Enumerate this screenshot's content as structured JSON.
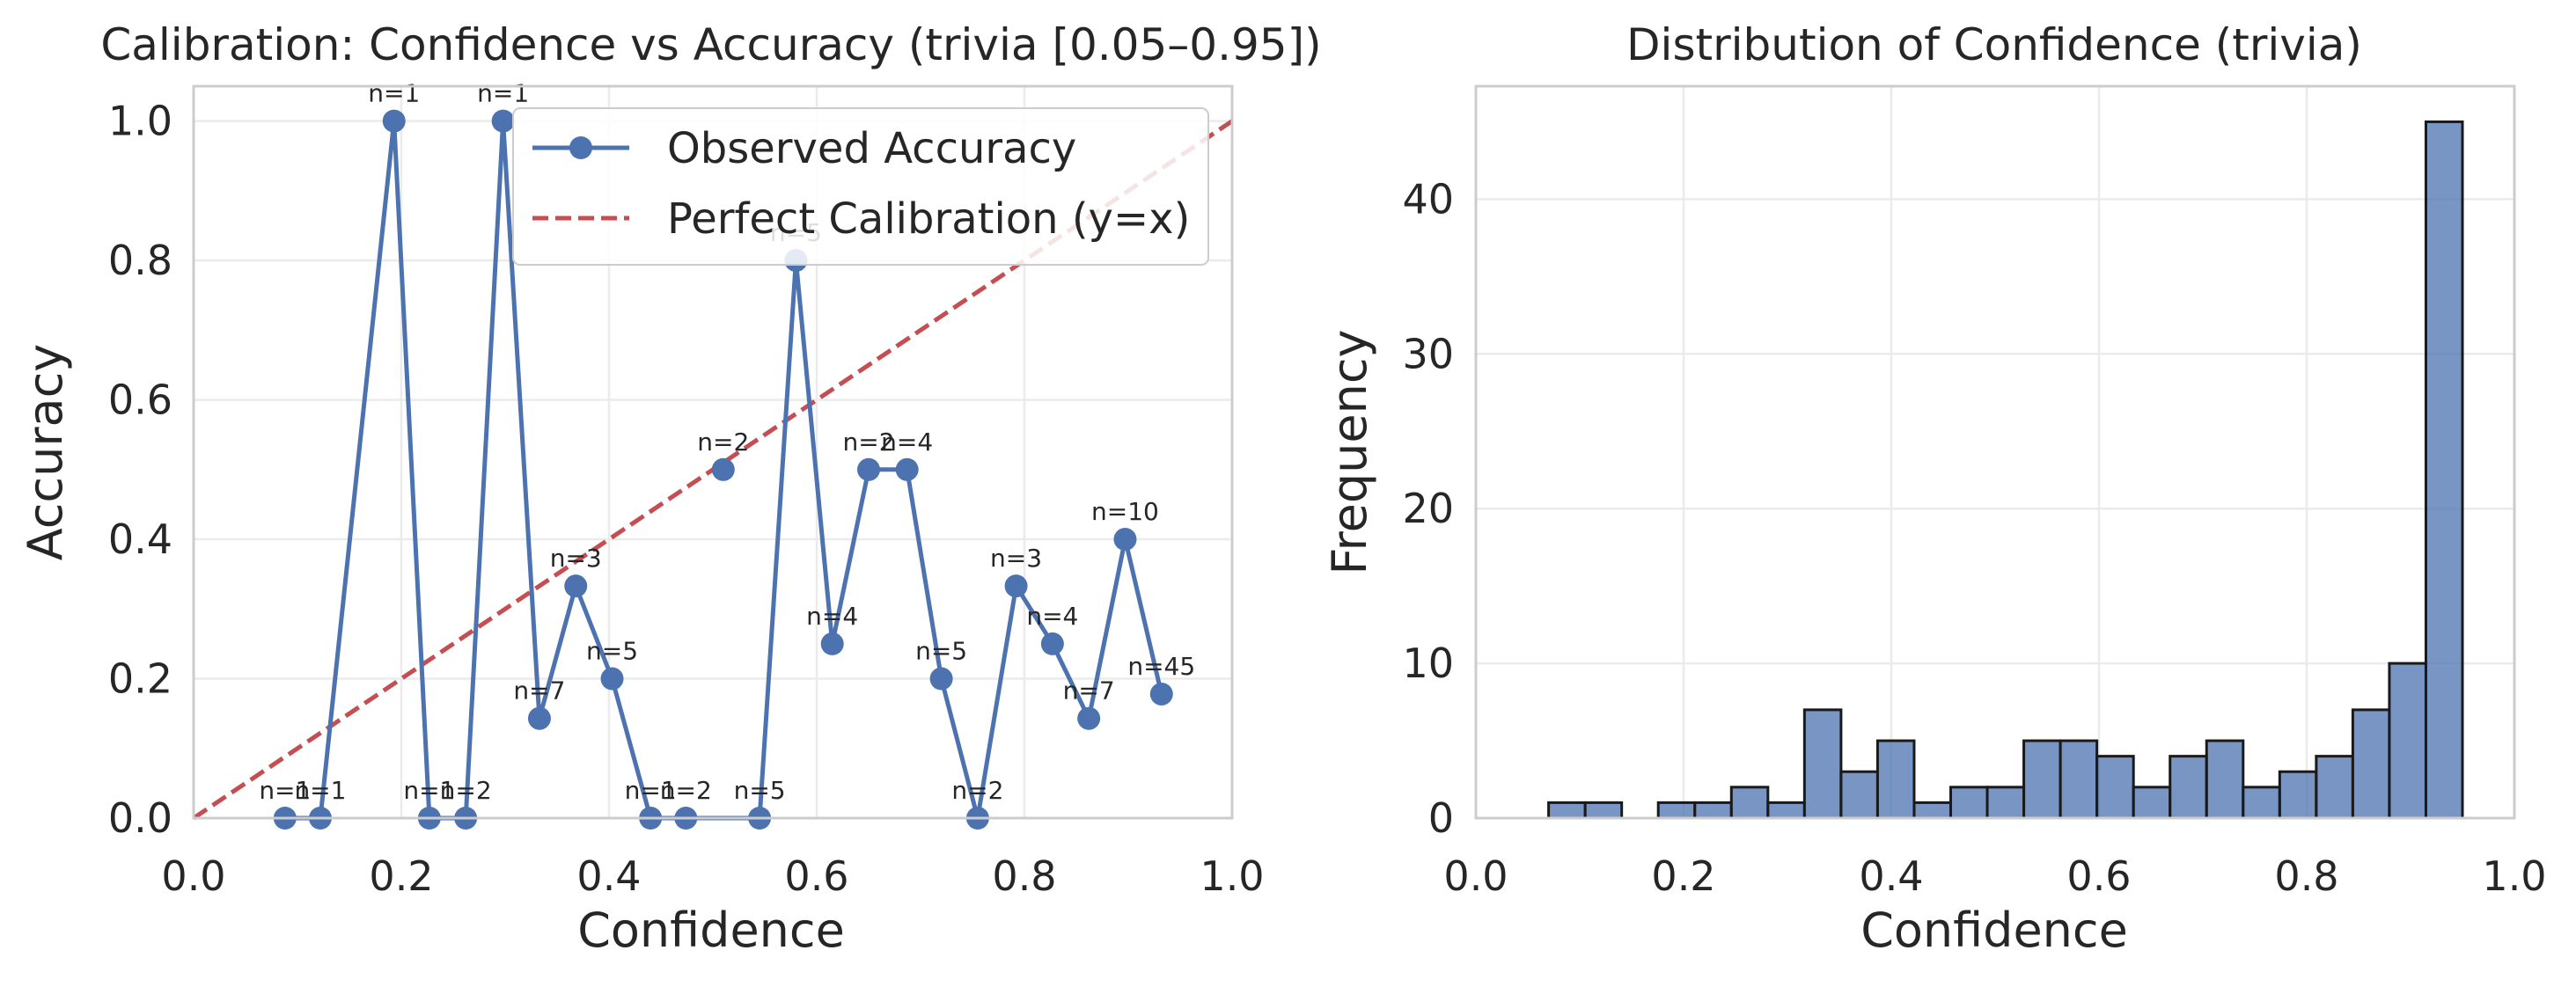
{
  "colors": {
    "line": "#4c72b0",
    "perfect": "#c44e52",
    "bar_fill": "#4c72b0",
    "bar_edge": "#1a1a1a",
    "grid": "#ebebeb",
    "spine": "#cccccc",
    "text": "#262626"
  },
  "chart_data": [
    {
      "type": "line",
      "title": "Calibration: Confidence vs Accuracy (trivia [0.05–0.95])",
      "xlabel": "Confidence",
      "ylabel": "Accuracy",
      "xlim": [
        0,
        1
      ],
      "ylim": [
        0,
        1.05
      ],
      "xticks": [
        "0.0",
        "0.2",
        "0.4",
        "0.6",
        "0.8",
        "1.0"
      ],
      "yticks": [
        "0.0",
        "0.2",
        "0.4",
        "0.6",
        "0.8",
        "1.0"
      ],
      "grid": true,
      "legend_position": "top-right",
      "series": [
        {
          "name": "Observed Accuracy",
          "marker": "circle",
          "x": [
            0.088,
            0.122,
            0.193,
            0.227,
            0.262,
            0.298,
            0.333,
            0.368,
            0.403,
            0.44,
            0.474,
            0.545,
            0.58,
            0.615,
            0.65,
            0.687,
            0.72,
            0.755,
            0.792,
            0.827,
            0.862,
            0.897,
            0.932
          ],
          "y": [
            0,
            0,
            1.0,
            0,
            0,
            1.0,
            0.143,
            0.333,
            0.2,
            0,
            0,
            0,
            0.8,
            0.25,
            0.5,
            0.5,
            0.2,
            0,
            0.333,
            0.25,
            0.143,
            0.4,
            0.178
          ],
          "labels": [
            "n=1",
            "n=1",
            "n=1",
            "n=1",
            "n=2",
            "n=1",
            "n=7",
            "n=3",
            "n=5",
            "n=1",
            "n=2",
            "n=5",
            "n=5",
            "n=4",
            "n=2",
            "n=4",
            "n=5",
            "n=2",
            "n=3",
            "n=4",
            "n=7",
            "n=10",
            "n=45"
          ]
        },
        {
          "name": "Perfect Calibration (y=x)",
          "style": "dashed",
          "x": [
            0,
            1
          ],
          "y": [
            0,
            1
          ]
        }
      ],
      "extra_point": {
        "x": 0.51,
        "y": 0.5,
        "label": "n=2"
      }
    },
    {
      "type": "bar",
      "title": "Distribution of Confidence (trivia)",
      "xlabel": "Confidence",
      "ylabel": "Frequency",
      "xlim": [
        0,
        1
      ],
      "ylim": [
        0,
        47.3
      ],
      "xticks": [
        "0.0",
        "0.2",
        "0.4",
        "0.6",
        "0.8",
        "1.0"
      ],
      "yticks": [
        "0",
        "10",
        "20",
        "30",
        "40"
      ],
      "grid": true,
      "bin_edges": [
        0.07,
        0.1052,
        0.1404,
        0.1756,
        0.2108,
        0.246,
        0.2812,
        0.3164,
        0.3516,
        0.3868,
        0.422,
        0.4572,
        0.4924,
        0.5276,
        0.5628,
        0.598,
        0.6332,
        0.6684,
        0.7036,
        0.7388,
        0.774,
        0.8092,
        0.8444,
        0.8796,
        0.9148,
        0.95
      ],
      "counts": [
        1,
        1,
        0,
        1,
        1,
        2,
        1,
        7,
        3,
        5,
        1,
        2,
        2,
        5,
        5,
        4,
        2,
        4,
        5,
        2,
        3,
        4,
        7,
        10,
        45
      ]
    }
  ]
}
